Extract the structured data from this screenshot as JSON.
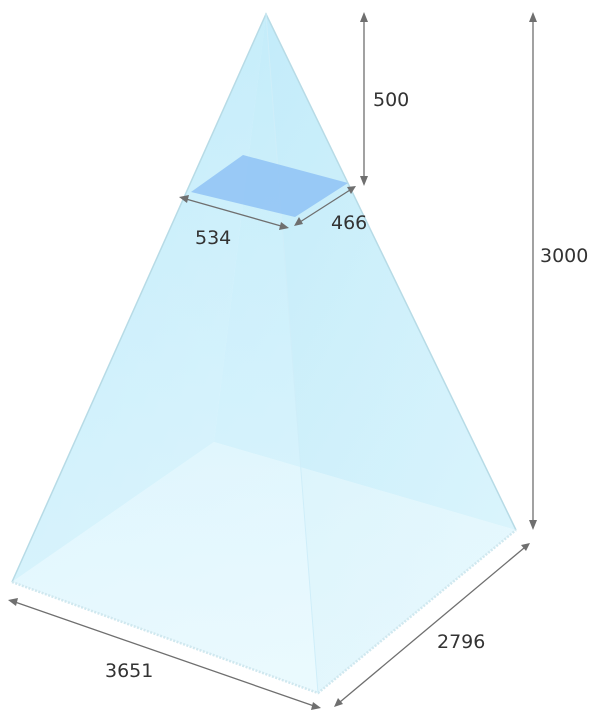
{
  "diagram": {
    "dimensions": {
      "top_height": "500",
      "section_width": "534",
      "section_depth": "466",
      "total_height": "3000",
      "base_width": "3651",
      "base_depth": "2796"
    },
    "colors": {
      "face_light": "#dff6fd",
      "face_mid": "#c6eefb",
      "face_deep": "#a9e4f7",
      "section_fill": "#8fc2f5",
      "base_fill": "#f2fbfe",
      "edge": "#b7dbe6",
      "dimension_line": "#6f6f6f",
      "label_text": "#333333"
    }
  }
}
